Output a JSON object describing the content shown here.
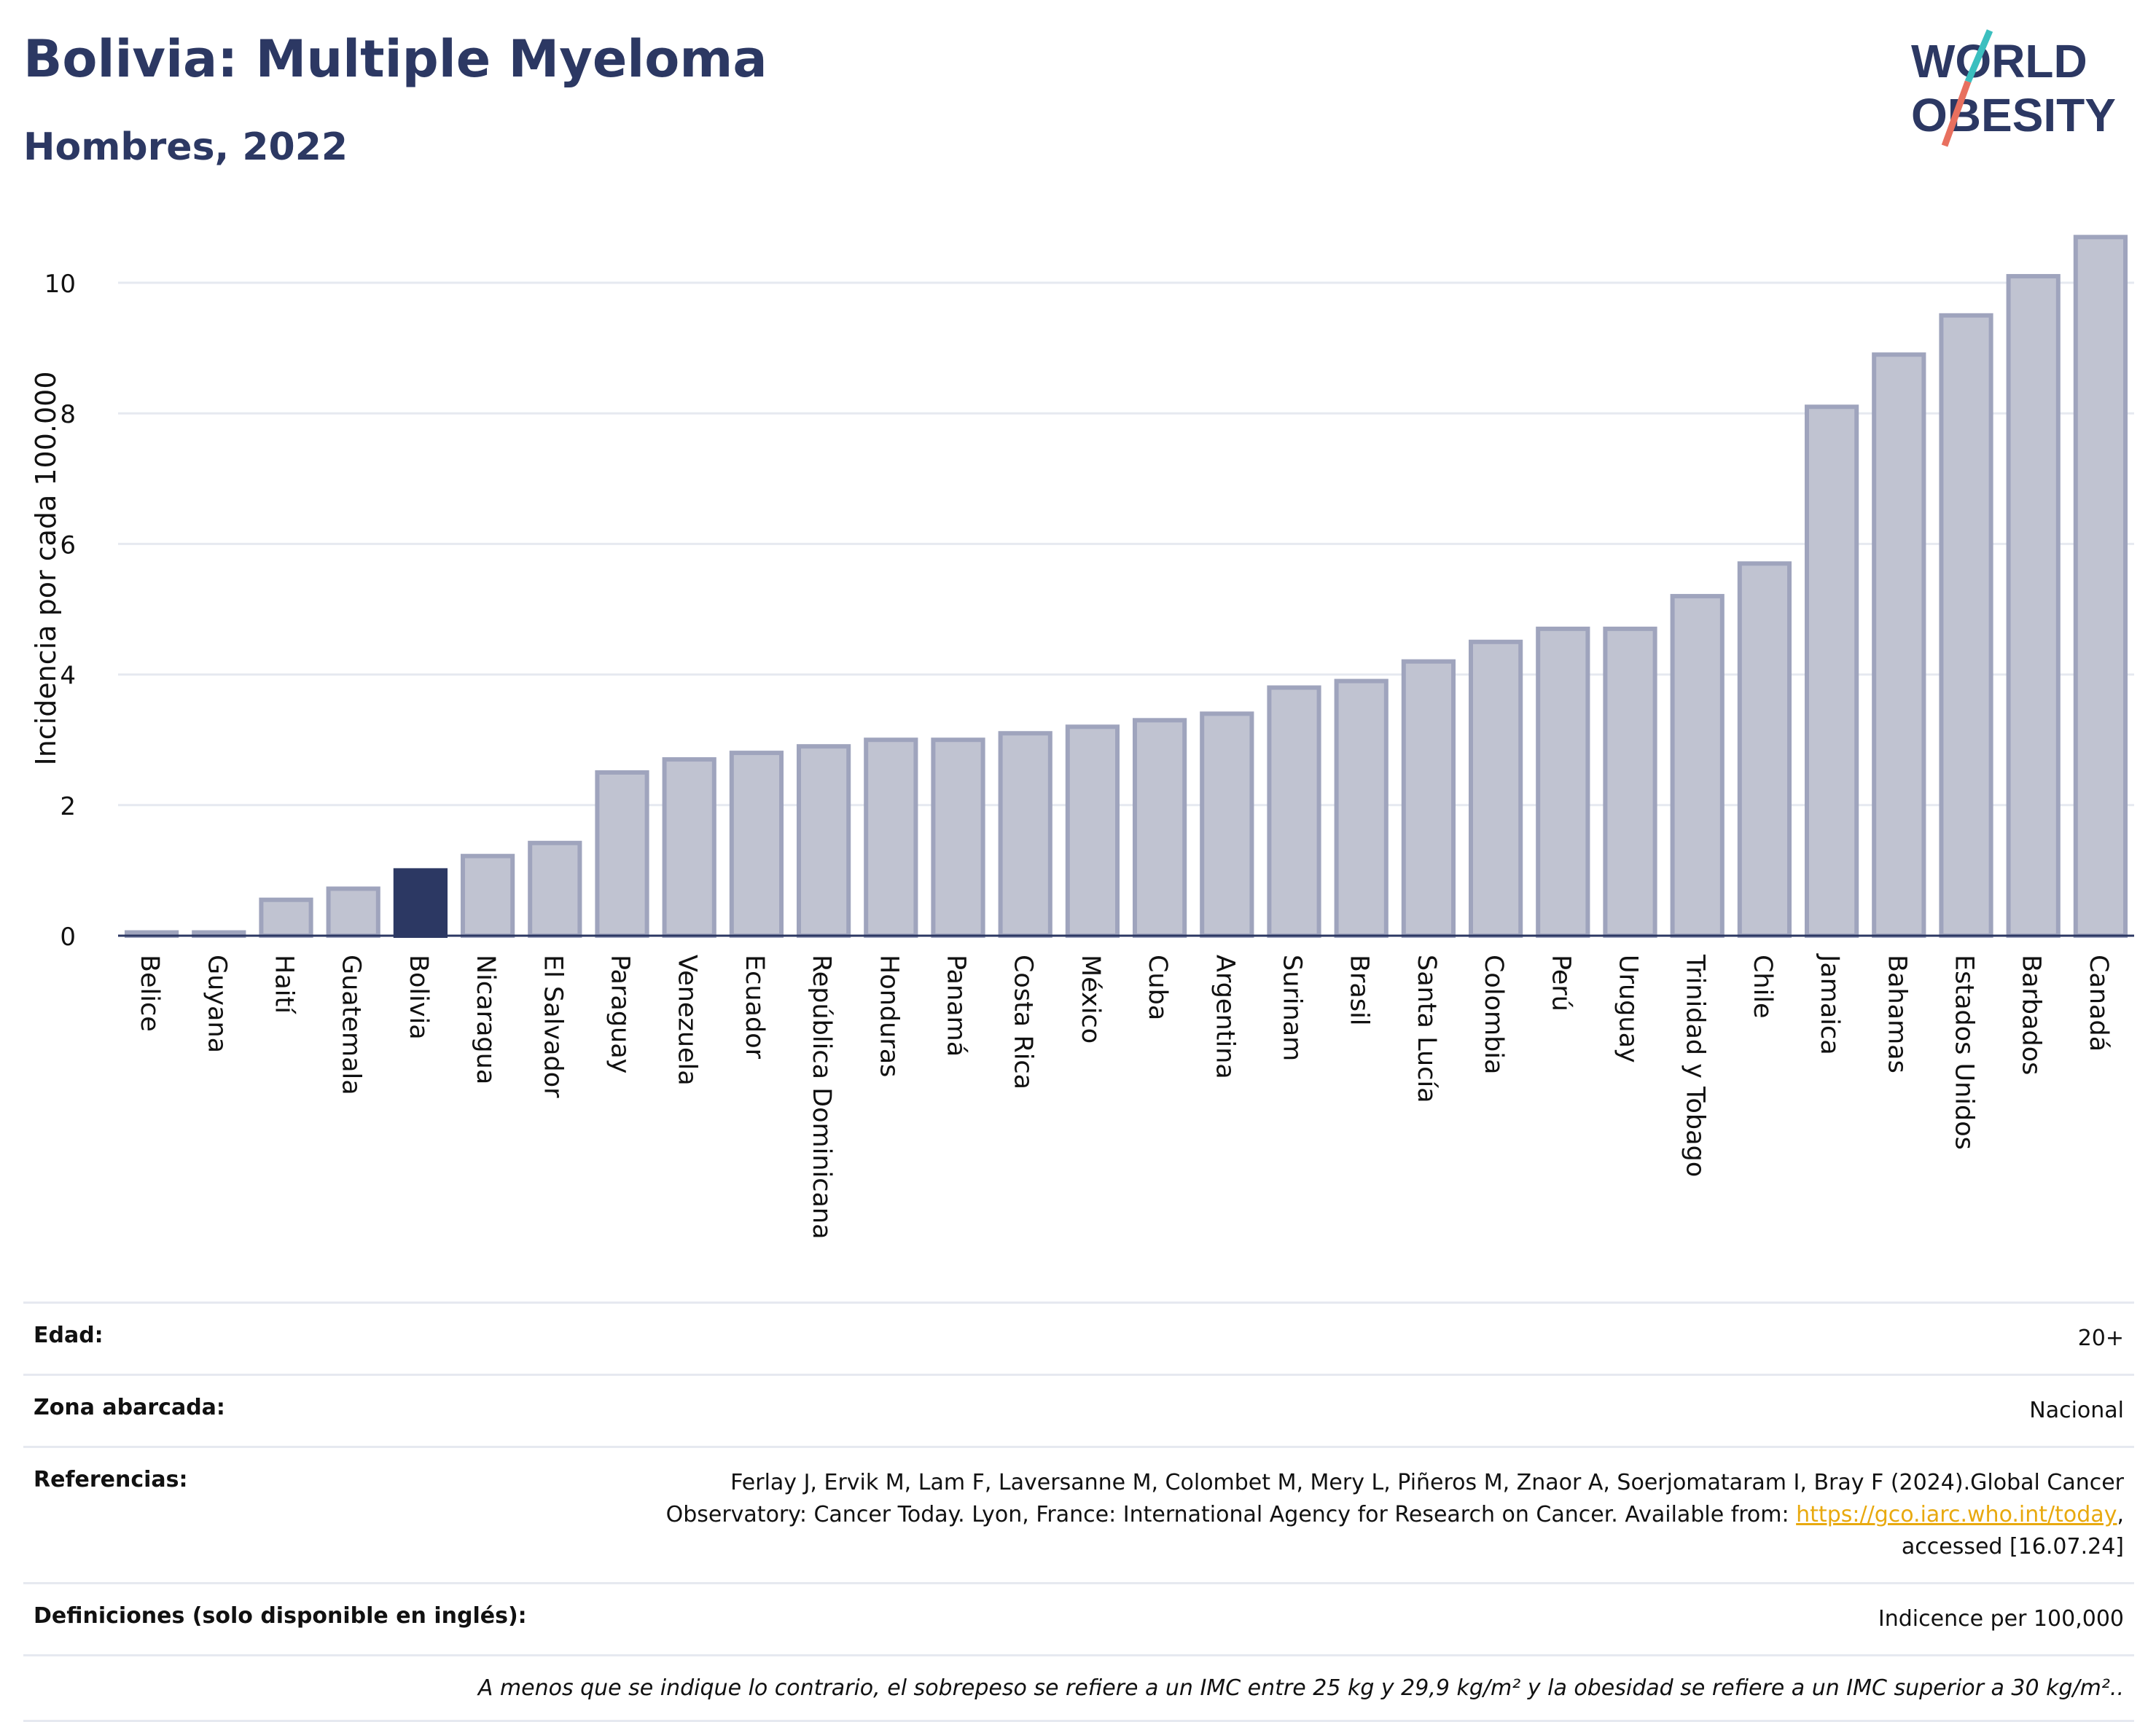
{
  "header": {
    "title": "Bolivia: Multiple Myeloma",
    "subtitle": "Hombres, 2022",
    "logo_line1": "WORLD",
    "logo_line2": "OBESITY"
  },
  "colors": {
    "highlight": "#2c3863",
    "bar_fill": "#c0c3d1",
    "bar_stroke": "#9fa4bd",
    "grid": "#e6e9f0",
    "text": "#2c3863",
    "link": "#e8a90f",
    "logo_slash_teal": "#3bbfbf",
    "logo_slash_coral": "#e8705f"
  },
  "chart_data": {
    "type": "bar",
    "ylabel": "Incidencia por cada 100.000",
    "ylim": [
      0,
      11
    ],
    "yticks": [
      0,
      2,
      4,
      6,
      8,
      10
    ],
    "highlight": "Bolivia",
    "grid": true,
    "categories": [
      "Belice",
      "Guyana",
      "Haití",
      "Guatemala",
      "Bolivia",
      "Nicaragua",
      "El Salvador",
      "Paraguay",
      "Venezuela",
      "Ecuador",
      "República Dominicana",
      "Honduras",
      "Panamá",
      "Costa Rica",
      "México",
      "Cuba",
      "Argentina",
      "Surinam",
      "Brasil",
      "Santa Lucía",
      "Colombia",
      "Perú",
      "Uruguay",
      "Trinidad y Tobago",
      "Chile",
      "Jamaica",
      "Bahamas",
      "Estados Unidos",
      "Barbados",
      "Canadá"
    ],
    "values": [
      0.05,
      0.05,
      0.55,
      0.72,
      1.0,
      1.22,
      1.42,
      2.5,
      2.7,
      2.8,
      2.9,
      3.0,
      3.0,
      3.1,
      3.2,
      3.3,
      3.4,
      3.8,
      3.9,
      4.2,
      4.5,
      4.7,
      4.7,
      5.2,
      5.7,
      8.1,
      8.9,
      9.5,
      10.1,
      10.7
    ]
  },
  "meta": {
    "edad_label": "Edad:",
    "edad_value": "20+",
    "zona_label": "Zona abarcada:",
    "zona_value": "Nacional",
    "ref_label": "Referencias:",
    "ref_text_1": "Ferlay J, Ervik M, Lam F, Laversanne M, Colombet M, Mery L, Piñeros M, Znaor A, Soerjomataram I, Bray F (2024).Global Cancer Observatory: Cancer Today. Lyon, France: International Agency for Research on Cancer. Available from: ",
    "ref_link": "https://gco.iarc.who.int/today",
    "ref_text_2": ", accessed [16.07.24]",
    "def_label": "Definiciones (solo disponible en inglés):",
    "def_value": "Indicence per 100,000",
    "footnote": "A menos que se indique lo contrario, el sobrepeso se refiere a un IMC entre 25 kg y 29,9 kg/m² y la obesidad se refiere a un IMC superior a 30 kg/m².."
  }
}
